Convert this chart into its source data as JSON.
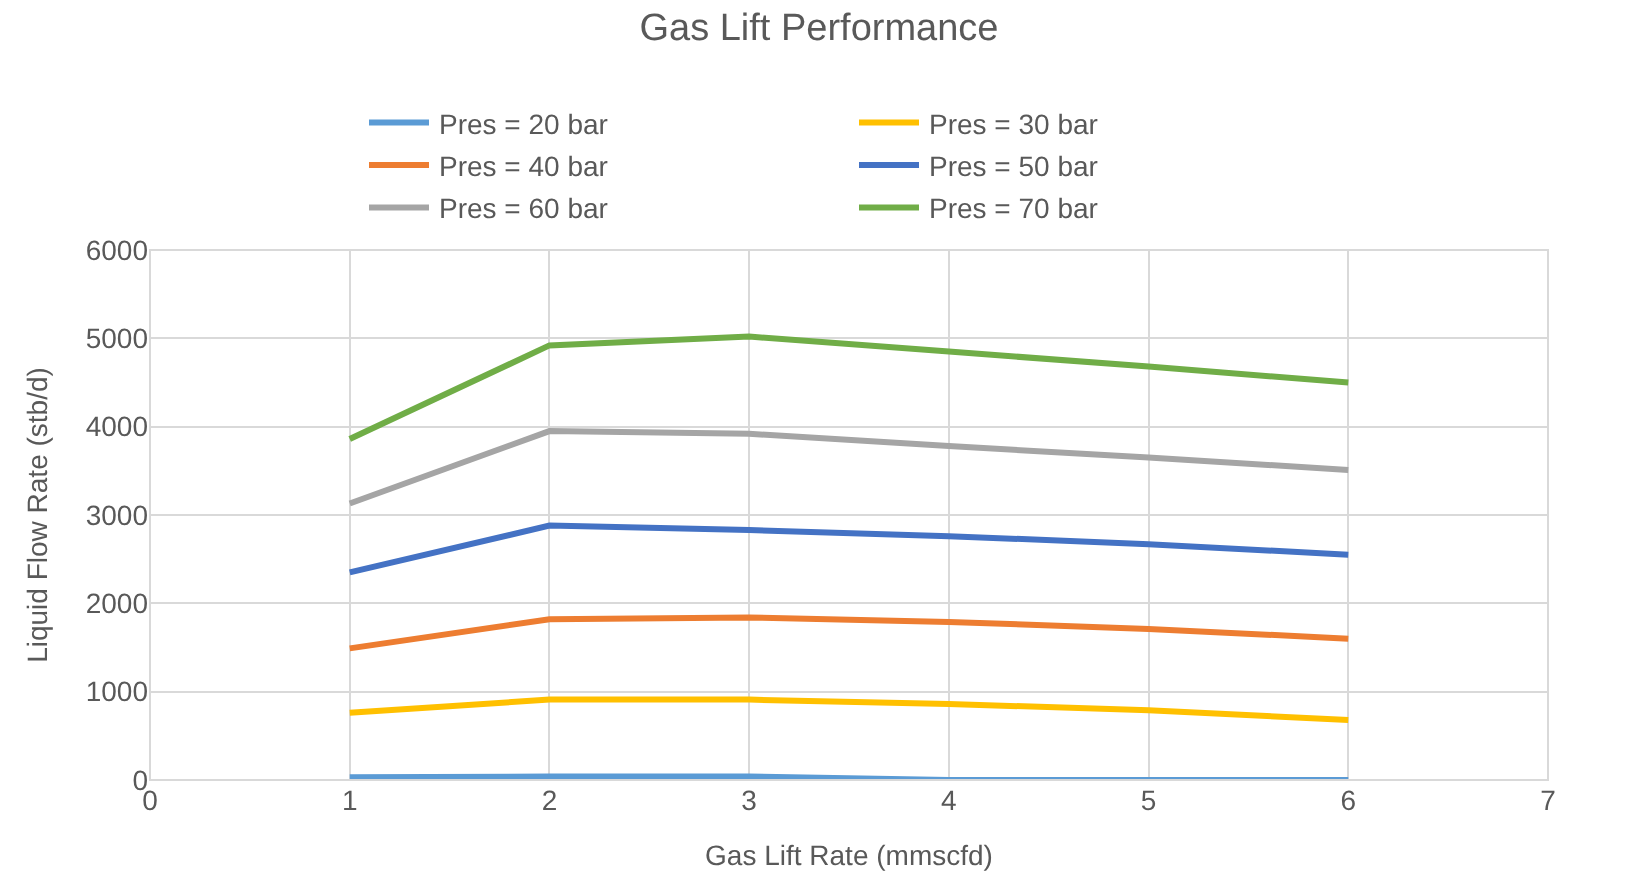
{
  "chart_data": {
    "type": "line",
    "title": "Gas Lift Performance",
    "xlabel": "Gas Lift Rate (mmscfd)",
    "ylabel": "Liquid Flow Rate (stb/d)",
    "x": [
      1,
      2,
      3,
      4,
      5,
      6
    ],
    "xlim": [
      0,
      7
    ],
    "xticks": [
      0,
      1,
      2,
      3,
      4,
      5,
      6,
      7
    ],
    "ylim": [
      0,
      6000
    ],
    "yticks": [
      0,
      1000,
      2000,
      3000,
      4000,
      5000,
      6000
    ],
    "grid": true,
    "legend": "top",
    "marker": "none",
    "line_style": "solid",
    "series": [
      {
        "name": "Pres = 20 bar",
        "color": "#5b9bd5",
        "values": [
          30,
          40,
          40,
          0,
          0,
          0
        ]
      },
      {
        "name": "Pres = 30 bar",
        "color": "#ffc000",
        "values": [
          760,
          910,
          910,
          860,
          790,
          680
        ]
      },
      {
        "name": "Pres = 40 bar",
        "color": "#ed7d31",
        "values": [
          1490,
          1820,
          1840,
          1790,
          1710,
          1600
        ]
      },
      {
        "name": "Pres = 50 bar",
        "color": "#4472c4",
        "values": [
          2350,
          2880,
          2830,
          2760,
          2670,
          2550
        ]
      },
      {
        "name": "Pres = 60 bar",
        "color": "#a5a5a5",
        "values": [
          3130,
          3950,
          3920,
          3780,
          3650,
          3510
        ]
      },
      {
        "name": "Pres = 70 bar",
        "color": "#70ad47",
        "values": [
          3860,
          4920,
          5020,
          4850,
          4680,
          4500
        ]
      }
    ]
  }
}
